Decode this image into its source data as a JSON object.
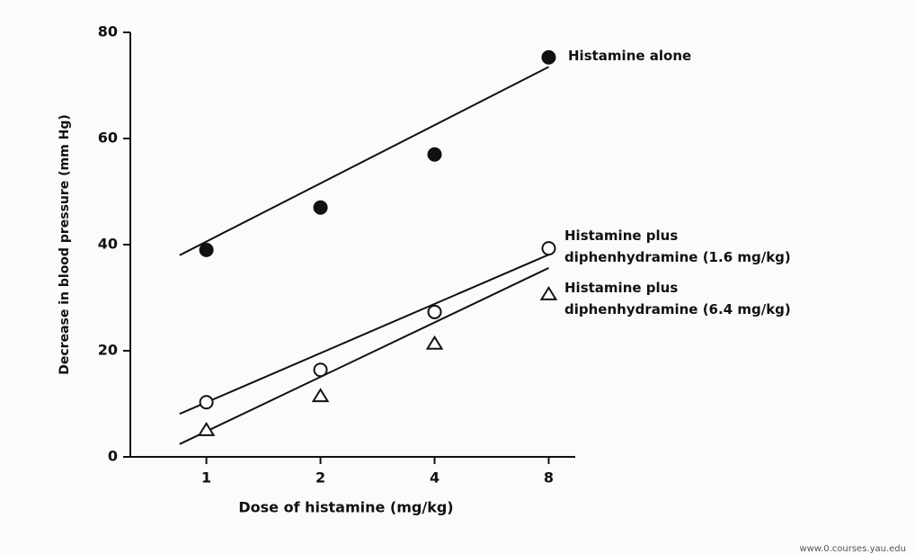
{
  "chart_data": {
    "type": "scatter",
    "x_label": "Dose of histamine (mg/kg)",
    "y_label": "Decrease in blood pressure (mm Hg)",
    "x": [
      1,
      2,
      4,
      8
    ],
    "xscale": "log",
    "xlim": [
      0.63,
      9.4
    ],
    "xticks": [
      1,
      2,
      4,
      8
    ],
    "ylim": [
      0,
      80
    ],
    "yticks": [
      0,
      20,
      40,
      60,
      80
    ],
    "series": [
      {
        "name": "Histamine alone",
        "color": "#111111",
        "marker": "filled-circle",
        "values": [
          39,
          47,
          57,
          75.3
        ],
        "fit_x": [
          0.85,
          8
        ],
        "fit_values": [
          38,
          73.5
        ]
      },
      {
        "name": "Histamine plus\ndiphenhydramine (1.6 mg/kg)",
        "color": "#111111",
        "marker": "open-circle",
        "values": [
          10.3,
          16.4,
          27.3,
          39.3
        ],
        "fit_x": [
          0.85,
          8
        ],
        "fit_values": [
          8.1,
          38.1
        ]
      },
      {
        "name": "Histamine plus\ndiphenhydramine (6.4 mg/kg)",
        "color": "#111111",
        "marker": "triangle",
        "values": [
          5.1,
          11.5,
          21.4,
          30.7
        ],
        "fit_x": [
          0.85,
          8
        ],
        "fit_values": [
          2.4,
          35.6
        ]
      }
    ],
    "source": "www.0.courses.yau.edu"
  }
}
